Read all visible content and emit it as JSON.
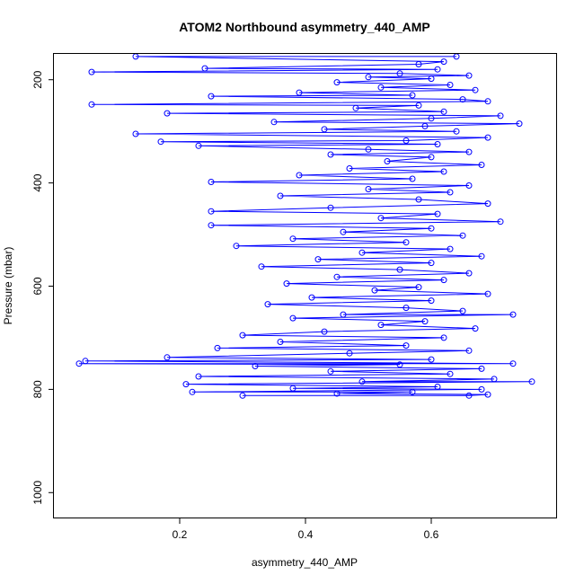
{
  "chart_data": {
    "type": "scatter",
    "title": "ATOM2 Northbound asymmetry_440_AMP",
    "xlabel": "asymmetry_440_AMP",
    "ylabel": "Pressure (mbar)",
    "xlim": [
      0.0,
      0.8
    ],
    "ylim": [
      1050,
      150
    ],
    "y_reversed": true,
    "x_ticks": [
      0.2,
      0.4,
      0.6
    ],
    "y_ticks": [
      200,
      400,
      600,
      800,
      1000
    ],
    "grid": false,
    "legend": "none",
    "series": [
      {
        "color": "#0000ff",
        "style": "points-and-lines",
        "marker": "open-circle",
        "points": [
          [
            0.64,
            155
          ],
          [
            0.13,
            155
          ],
          [
            0.62,
            165
          ],
          [
            0.58,
            170
          ],
          [
            0.24,
            178
          ],
          [
            0.61,
            180
          ],
          [
            0.06,
            185
          ],
          [
            0.55,
            188
          ],
          [
            0.66,
            192
          ],
          [
            0.5,
            195
          ],
          [
            0.6,
            198
          ],
          [
            0.45,
            205
          ],
          [
            0.63,
            210
          ],
          [
            0.52,
            215
          ],
          [
            0.67,
            220
          ],
          [
            0.39,
            225
          ],
          [
            0.57,
            230
          ],
          [
            0.25,
            232
          ],
          [
            0.65,
            238
          ],
          [
            0.69,
            242
          ],
          [
            0.06,
            248
          ],
          [
            0.58,
            250
          ],
          [
            0.48,
            255
          ],
          [
            0.62,
            262
          ],
          [
            0.18,
            265
          ],
          [
            0.71,
            270
          ],
          [
            0.6,
            275
          ],
          [
            0.35,
            282
          ],
          [
            0.74,
            285
          ],
          [
            0.59,
            290
          ],
          [
            0.43,
            296
          ],
          [
            0.64,
            300
          ],
          [
            0.13,
            305
          ],
          [
            0.69,
            312
          ],
          [
            0.56,
            318
          ],
          [
            0.17,
            320
          ],
          [
            0.61,
            325
          ],
          [
            0.23,
            328
          ],
          [
            0.5,
            335
          ],
          [
            0.66,
            340
          ],
          [
            0.44,
            345
          ],
          [
            0.6,
            350
          ],
          [
            0.53,
            358
          ],
          [
            0.68,
            365
          ],
          [
            0.47,
            372
          ],
          [
            0.62,
            378
          ],
          [
            0.39,
            385
          ],
          [
            0.57,
            392
          ],
          [
            0.25,
            398
          ],
          [
            0.66,
            405
          ],
          [
            0.5,
            412
          ],
          [
            0.63,
            418
          ],
          [
            0.36,
            425
          ],
          [
            0.58,
            432
          ],
          [
            0.69,
            440
          ],
          [
            0.44,
            448
          ],
          [
            0.25,
            455
          ],
          [
            0.61,
            460
          ],
          [
            0.52,
            468
          ],
          [
            0.71,
            475
          ],
          [
            0.25,
            482
          ],
          [
            0.6,
            488
          ],
          [
            0.46,
            495
          ],
          [
            0.65,
            502
          ],
          [
            0.38,
            508
          ],
          [
            0.56,
            515
          ],
          [
            0.29,
            522
          ],
          [
            0.63,
            528
          ],
          [
            0.49,
            535
          ],
          [
            0.68,
            542
          ],
          [
            0.42,
            548
          ],
          [
            0.6,
            555
          ],
          [
            0.33,
            562
          ],
          [
            0.55,
            568
          ],
          [
            0.66,
            575
          ],
          [
            0.45,
            582
          ],
          [
            0.62,
            588
          ],
          [
            0.37,
            595
          ],
          [
            0.58,
            602
          ],
          [
            0.51,
            608
          ],
          [
            0.69,
            615
          ],
          [
            0.41,
            622
          ],
          [
            0.6,
            628
          ],
          [
            0.34,
            635
          ],
          [
            0.56,
            642
          ],
          [
            0.65,
            648
          ],
          [
            0.46,
            655
          ],
          [
            0.73,
            655
          ],
          [
            0.38,
            662
          ],
          [
            0.59,
            668
          ],
          [
            0.52,
            675
          ],
          [
            0.67,
            682
          ],
          [
            0.43,
            688
          ],
          [
            0.3,
            695
          ],
          [
            0.62,
            700
          ],
          [
            0.36,
            708
          ],
          [
            0.56,
            715
          ],
          [
            0.26,
            720
          ],
          [
            0.66,
            725
          ],
          [
            0.47,
            730
          ],
          [
            0.18,
            738
          ],
          [
            0.6,
            742
          ],
          [
            0.05,
            745
          ],
          [
            0.73,
            750
          ],
          [
            0.04,
            750
          ],
          [
            0.55,
            752
          ],
          [
            0.32,
            755
          ],
          [
            0.68,
            760
          ],
          [
            0.44,
            765
          ],
          [
            0.63,
            770
          ],
          [
            0.23,
            775
          ],
          [
            0.7,
            780
          ],
          [
            0.49,
            785
          ],
          [
            0.76,
            785
          ],
          [
            0.21,
            790
          ],
          [
            0.61,
            795
          ],
          [
            0.38,
            798
          ],
          [
            0.68,
            800
          ],
          [
            0.22,
            805
          ],
          [
            0.57,
            805
          ],
          [
            0.45,
            808
          ],
          [
            0.69,
            810
          ],
          [
            0.66,
            812
          ],
          [
            0.3,
            812
          ]
        ]
      }
    ]
  }
}
